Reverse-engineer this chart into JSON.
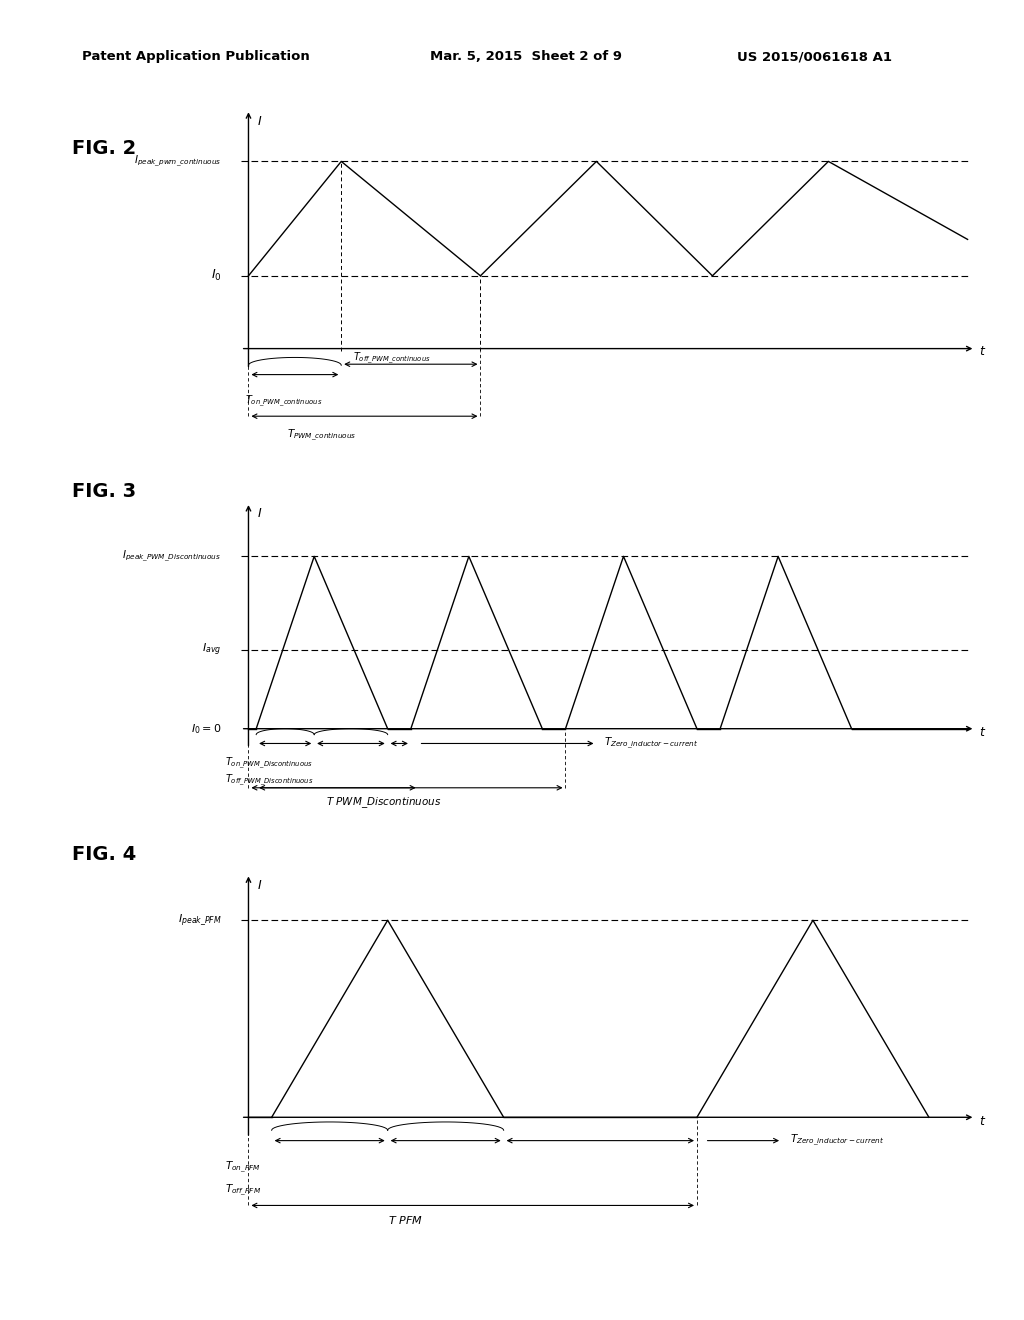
{
  "bg_color": "#ffffff",
  "fig2": {
    "label": "FIG. 2",
    "ipeak_label": "I_peak_pwm_continuous",
    "i0_label": "I_0",
    "ton_label": "T_on_PWM_continuous",
    "toff_label": "T_off_PWM_continuous",
    "tpwm_label": "T_PWM_continuous"
  },
  "fig3": {
    "label": "FIG. 3",
    "ipeak_label": "I_peak_PWM_Discontinuous",
    "iavg_label": "I_avg",
    "i0_label": "I_0 =0",
    "ton_label": "T_on_PWM_Discontinuous",
    "toff_label": "T_off_PWM_Discontinuous",
    "tzero_label": "T_Zero_inductor-current",
    "tpwm_label": "T PWM_Discontinuous"
  },
  "fig4": {
    "label": "FIG. 4",
    "ipeak_label": "I_peak_PFM",
    "ton_label": "T_on_PFM",
    "toff_label": "T_off_PFM",
    "tzero_label": "T_Zero_inductor-current",
    "tpfm_label": "T PFM"
  }
}
